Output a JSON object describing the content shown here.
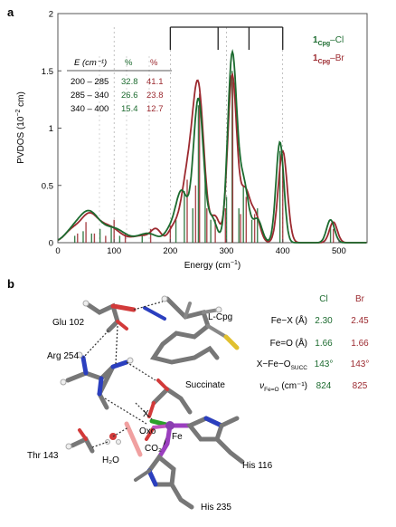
{
  "panel_a": {
    "label": "a",
    "xlabel": "Energy (cm",
    "xlabel_sup": "−1",
    "xlabel_close": ")",
    "ylabel": "PVDOS (10",
    "ylabel_sup": "−2",
    "ylabel_close": " cm)",
    "legend": [
      {
        "main": "1",
        "sub": "Cpg",
        "suffix": "–Cl",
        "color": "#1c6b2f"
      },
      {
        "main": "1",
        "sub": "Cpg",
        "suffix": "–Br",
        "color": "#9c2a30"
      }
    ],
    "table": {
      "headers": [
        "E (cm⁻¹)",
        "%",
        "%"
      ],
      "rows": [
        [
          "200 – 285",
          "32.8",
          "41.1"
        ],
        [
          "285 – 340",
          "26.6",
          "23.8"
        ],
        [
          "340 – 400",
          "15.4",
          "12.7"
        ]
      ]
    }
  },
  "chart_data": {
    "type": "line",
    "xlabel": "Energy (cm−1)",
    "ylabel": "PVDOS (10−2 cm)",
    "xlim": [
      0,
      550
    ],
    "ylim": [
      0,
      2
    ],
    "xticks": [
      0,
      100,
      200,
      300,
      400,
      500
    ],
    "yticks": [
      0,
      0.5,
      1,
      1.5,
      2
    ],
    "region_bounds": [
      200,
      285,
      340,
      400
    ],
    "series": [
      {
        "name": "1Cpg–Cl",
        "color": "#1c6b2f",
        "peaks": [
          [
            25,
            0.08,
            15
          ],
          [
            55,
            0.26,
            18
          ],
          [
            100,
            0.12,
            20
          ],
          [
            160,
            0.08,
            18
          ],
          [
            198,
            0.08,
            9
          ],
          [
            220,
            0.45,
            11
          ],
          [
            250,
            1.25,
            9
          ],
          [
            275,
            0.2,
            8
          ],
          [
            310,
            1.62,
            8
          ],
          [
            330,
            0.52,
            9
          ],
          [
            355,
            0.2,
            8
          ],
          [
            395,
            0.88,
            7
          ],
          [
            485,
            0.2,
            7
          ]
        ]
      },
      {
        "name": "1Cpg–Br",
        "color": "#9c2a30",
        "peaks": [
          [
            25,
            0.1,
            14
          ],
          [
            55,
            0.22,
            15
          ],
          [
            90,
            0.14,
            20
          ],
          [
            150,
            0.06,
            18
          ],
          [
            175,
            0.1,
            9
          ],
          [
            205,
            0.12,
            9
          ],
          [
            230,
            0.55,
            11
          ],
          [
            250,
            1.3,
            10
          ],
          [
            280,
            0.22,
            8
          ],
          [
            310,
            1.45,
            8
          ],
          [
            333,
            0.45,
            9
          ],
          [
            352,
            0.22,
            8
          ],
          [
            400,
            0.8,
            8
          ],
          [
            490,
            0.18,
            7
          ]
        ]
      }
    ],
    "sticks": {
      "green": [
        [
          30,
          0.06
        ],
        [
          45,
          0.1
        ],
        [
          60,
          0.08
        ],
        [
          75,
          0.12
        ],
        [
          95,
          0.15
        ],
        [
          110,
          0.06
        ],
        [
          150,
          0.08
        ],
        [
          210,
          0.2
        ],
        [
          225,
          0.45
        ],
        [
          240,
          0.3
        ],
        [
          250,
          1.2
        ],
        [
          262,
          0.6
        ],
        [
          272,
          0.2
        ],
        [
          300,
          0.4
        ],
        [
          310,
          1.5
        ],
        [
          322,
          0.3
        ],
        [
          330,
          0.5
        ],
        [
          345,
          0.2
        ],
        [
          355,
          0.3
        ],
        [
          395,
          0.8
        ],
        [
          485,
          0.15
        ]
      ],
      "red": [
        [
          35,
          0.08
        ],
        [
          50,
          0.18
        ],
        [
          65,
          0.08
        ],
        [
          85,
          0.06
        ],
        [
          100,
          0.2
        ],
        [
          120,
          0.08
        ],
        [
          165,
          0.12
        ],
        [
          200,
          0.15
        ],
        [
          230,
          0.55
        ],
        [
          245,
          0.5
        ],
        [
          252,
          1.3
        ],
        [
          265,
          0.3
        ],
        [
          280,
          0.2
        ],
        [
          298,
          0.3
        ],
        [
          311,
          1.4
        ],
        [
          325,
          0.25
        ],
        [
          335,
          0.4
        ],
        [
          350,
          0.25
        ],
        [
          400,
          0.7
        ],
        [
          490,
          0.12
        ]
      ]
    }
  },
  "panel_b": {
    "label": "b",
    "labels": {
      "glu": "Glu 102",
      "lcpg": "L-Cpg",
      "arg": "Arg 254",
      "succ": "Succinate",
      "x": "X",
      "oxo": "Oxo",
      "fe": "Fe",
      "thr": "Thr 143",
      "h2o": "H₂O",
      "co2": "CO₂",
      "his116": "His 116",
      "his235": "His 235"
    },
    "table": {
      "col_cl": "Cl",
      "col_br": "Br",
      "rows": [
        {
          "label": "Fe−X (Å)",
          "cl": "2.30",
          "br": "2.45"
        },
        {
          "label": "Fe=O (Å)",
          "cl": "1.66",
          "br": "1.66"
        },
        {
          "label": "X−Fe−O",
          "label_sub": "SUCC",
          "cl": "143°",
          "br": "143°"
        },
        {
          "label": "ν",
          "label_sub": "Fe=O",
          "label_tail": " (cm⁻¹)",
          "cl": "824",
          "br": "825"
        }
      ]
    }
  }
}
